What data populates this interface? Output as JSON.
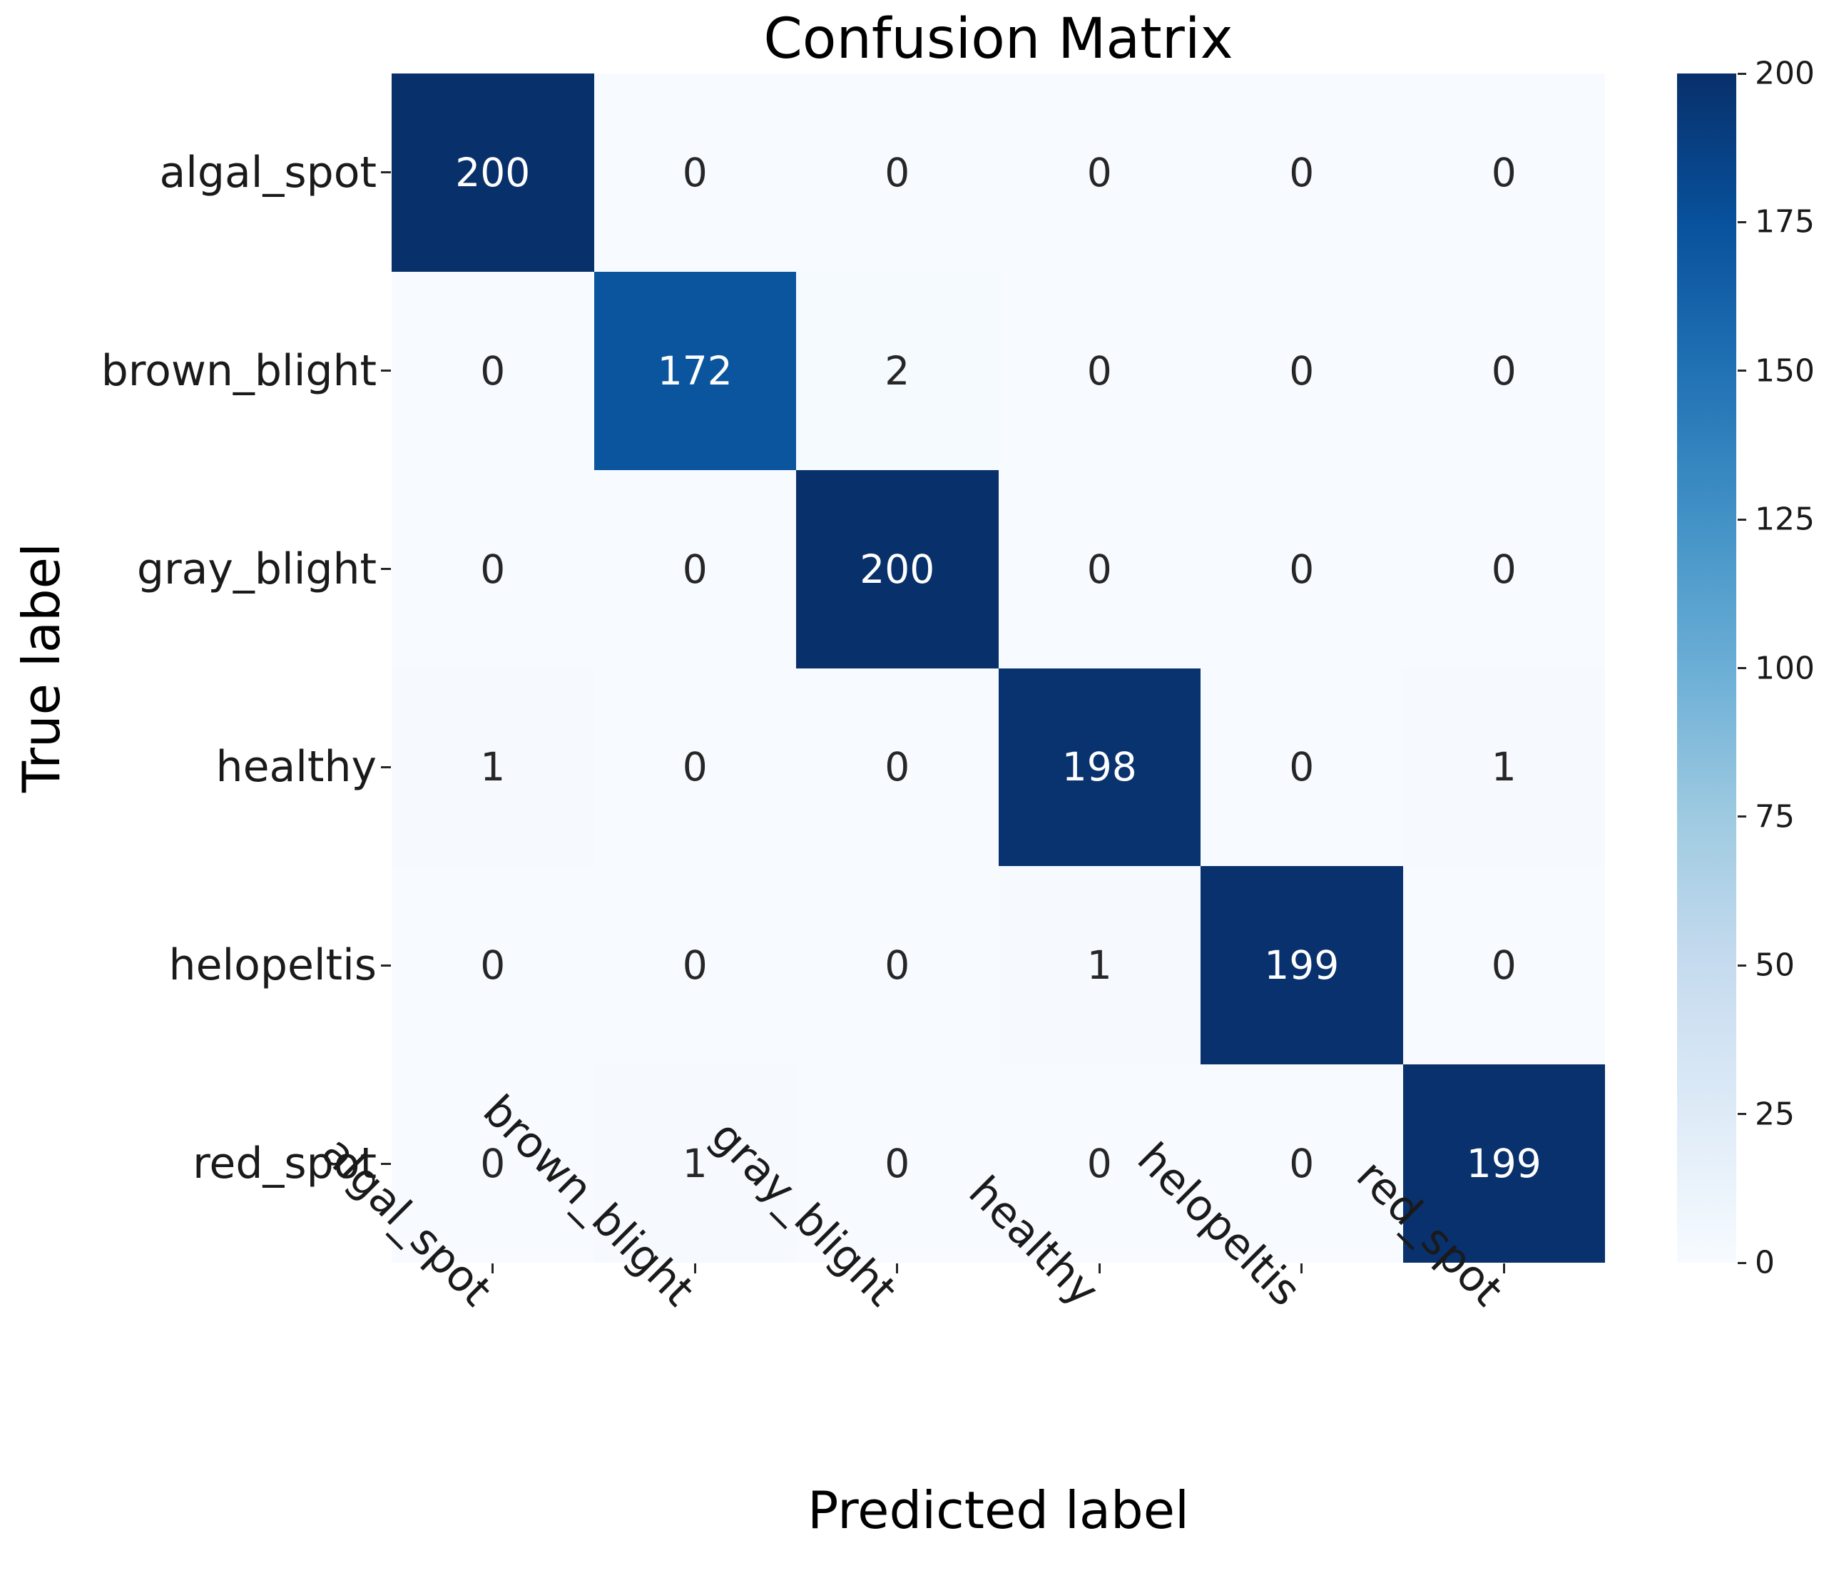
{
  "figure": {
    "title": "Confusion Matrix",
    "x_axis_label": "Predicted label",
    "y_axis_label": "True label"
  },
  "chart_data": {
    "type": "heatmap",
    "title": "Confusion Matrix",
    "xlabel": "Predicted label",
    "ylabel": "True label",
    "x_categories": [
      "algal_spot",
      "brown_blight",
      "gray_blight",
      "healthy",
      "helopeltis",
      "red_spot"
    ],
    "y_categories": [
      "algal_spot",
      "brown_blight",
      "gray_blight",
      "healthy",
      "helopeltis",
      "red_spot"
    ],
    "matrix": [
      [
        200,
        0,
        0,
        0,
        0,
        0
      ],
      [
        0,
        172,
        2,
        0,
        0,
        0
      ],
      [
        0,
        0,
        200,
        0,
        0,
        0
      ],
      [
        1,
        0,
        0,
        198,
        0,
        1
      ],
      [
        0,
        0,
        0,
        1,
        199,
        0
      ],
      [
        0,
        1,
        0,
        0,
        0,
        199
      ]
    ],
    "colormap": "Blues",
    "colormap_stops": [
      "#f7fbff",
      "#deebf7",
      "#c6dbef",
      "#9ecae1",
      "#6baed6",
      "#4292c6",
      "#2171b5",
      "#08519c",
      "#08306b"
    ],
    "colorbar": {
      "min": 0,
      "max": 200,
      "ticks": [
        0,
        25,
        50,
        75,
        100,
        125,
        150,
        175,
        200
      ],
      "position": "right"
    },
    "colors": {
      "annotation_on_dark": "#ffffff",
      "annotation_on_light": "#262626",
      "tick_color": "#1a1a1a",
      "background": "#ffffff"
    },
    "grid": false,
    "legend_position": "right-colorbar"
  }
}
